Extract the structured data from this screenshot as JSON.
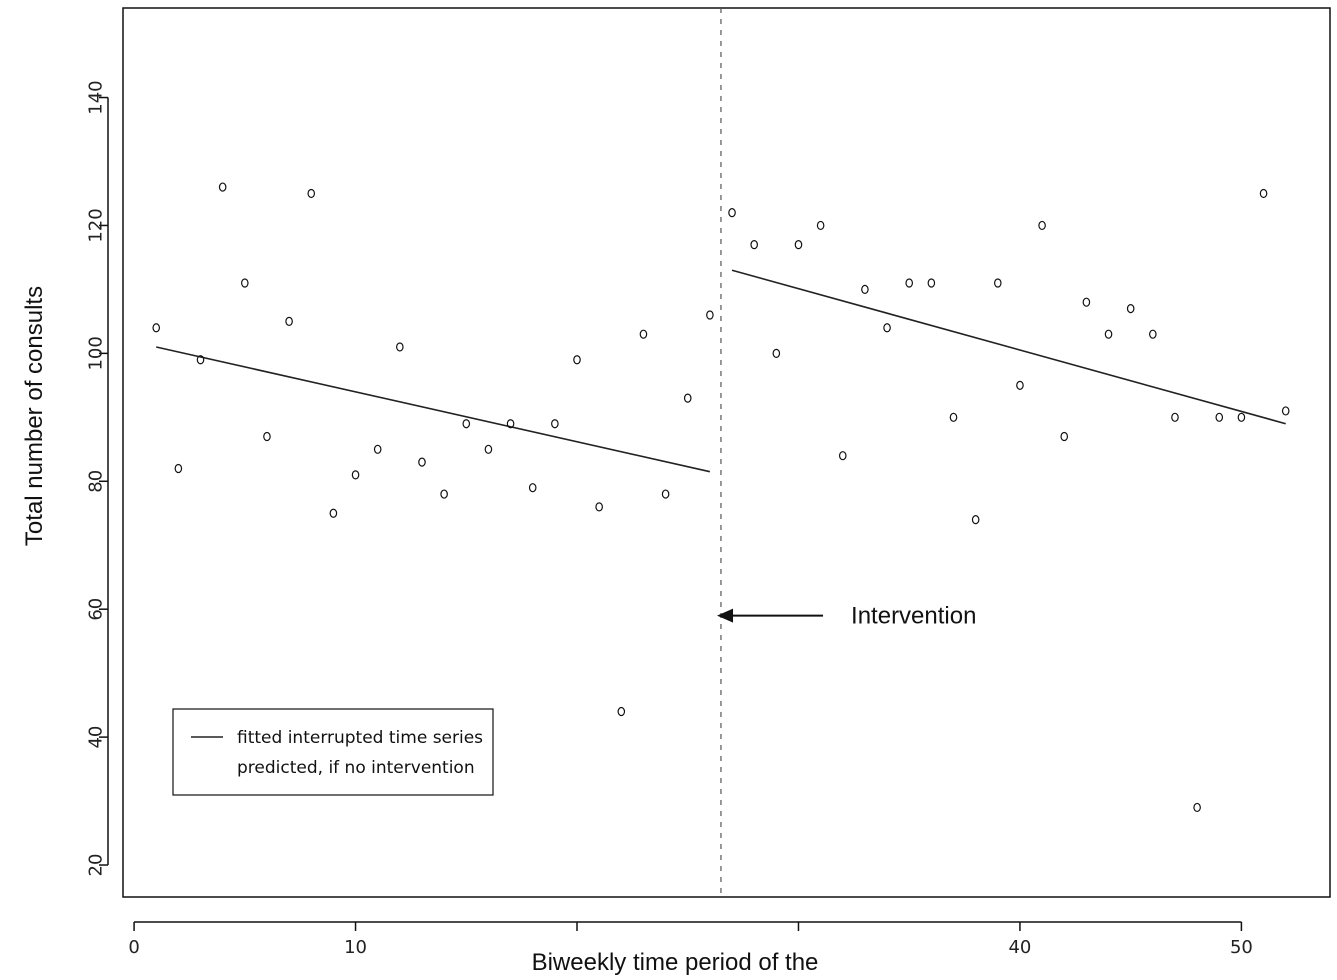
{
  "chart_data": {
    "type": "scatter",
    "xlabel": "Biweekly time period of the",
    "ylabel": "Total number of consults",
    "xlim": [
      -0.5,
      54
    ],
    "ylim": [
      15,
      154
    ],
    "x_ticks": [
      0,
      10,
      20,
      30,
      40,
      50
    ],
    "x_tick_labels": [
      "0",
      "10",
      "",
      "",
      "40",
      "50"
    ],
    "y_ticks": [
      20,
      40,
      60,
      80,
      100,
      120,
      140
    ],
    "y_tick_labels": [
      "20",
      "40",
      "60",
      "80",
      "100",
      "120",
      "140"
    ],
    "intervention_x": 26.5,
    "grid": false,
    "series": [
      {
        "name": "",
        "type": "scatter",
        "x": [
          1,
          2,
          3,
          4,
          5,
          6,
          7,
          8,
          9,
          10,
          11,
          12,
          13,
          14,
          15,
          16,
          17,
          18,
          19,
          20,
          21,
          22,
          23,
          24,
          25,
          26,
          27,
          28,
          29,
          30,
          31,
          32,
          33,
          34,
          35,
          36,
          37,
          38,
          39,
          40,
          41,
          42,
          43,
          44,
          45,
          46,
          47,
          48,
          49,
          50,
          51,
          52
        ],
        "y": [
          104,
          82,
          99,
          126,
          111,
          87,
          105,
          125,
          75,
          81,
          85,
          101,
          83,
          78,
          89,
          85,
          89,
          79,
          89,
          99,
          76,
          44,
          103,
          78,
          93,
          106,
          122,
          117,
          100,
          117,
          120,
          84,
          110,
          104,
          111,
          111,
          90,
          74,
          111,
          95,
          120,
          87,
          108,
          103,
          107,
          103,
          90,
          29,
          90,
          90,
          125,
          91
        ]
      },
      {
        "name": "fitted interrupted time series",
        "type": "line",
        "segments": [
          {
            "x": [
              1,
              26
            ],
            "y": [
              101,
              81.5
            ]
          },
          {
            "x": [
              27,
              52
            ],
            "y": [
              113,
              89
            ]
          }
        ]
      }
    ],
    "legend": {
      "position": "bottom-left",
      "entries": [
        "fitted interrupted time series",
        "predicted, if no intervention"
      ]
    },
    "annotations": [
      {
        "text": "Intervention",
        "x": 34,
        "y": 59,
        "arrow_to_x": 27,
        "arrow_to_y": 59
      }
    ],
    "colors": {
      "points": "#111111",
      "line": "#222222",
      "axis": "#111111",
      "background": "#ffffff"
    }
  }
}
